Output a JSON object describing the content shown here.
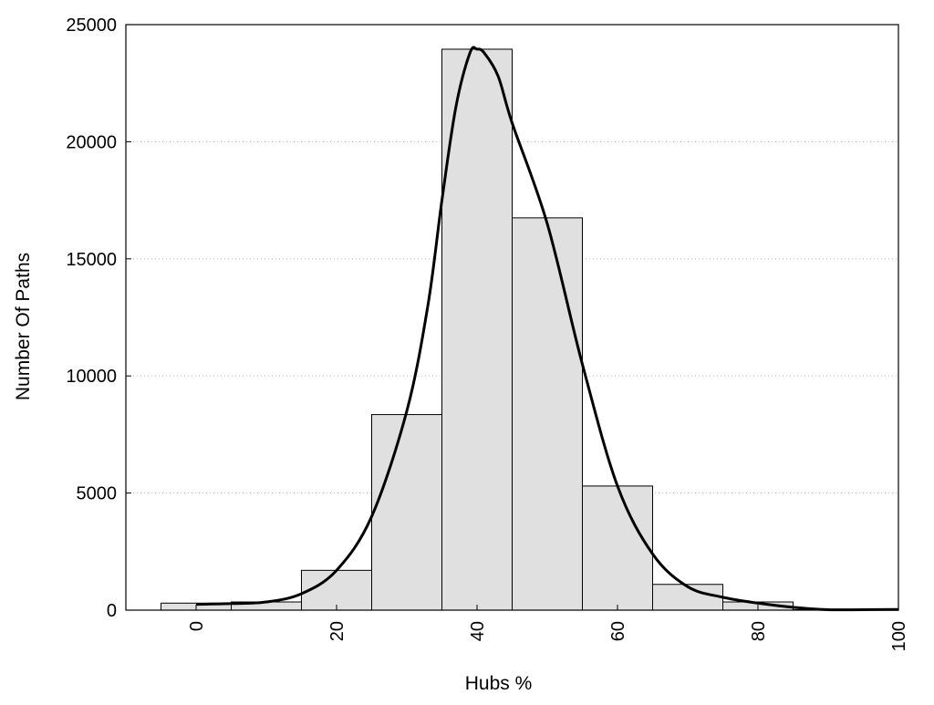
{
  "chart_data": {
    "type": "bar",
    "title": "",
    "xlabel": "Hubs %",
    "ylabel": "Number Of Paths",
    "xlim": [
      -10,
      100
    ],
    "ylim": [
      0,
      25000
    ],
    "grid": true,
    "legend": "none",
    "colors": {
      "bar_fill": "#e0e0e0",
      "bar_stroke": "#000000",
      "curve": "#000000",
      "grid": "#bbbbbb"
    },
    "x_ticks": [
      0,
      20,
      40,
      60,
      80,
      100
    ],
    "y_ticks": [
      0,
      5000,
      10000,
      15000,
      20000,
      25000
    ],
    "x_tick_labels": [
      "0",
      "20",
      "40",
      "60",
      "80",
      "100"
    ],
    "y_tick_labels": [
      "0",
      "5000",
      "10000",
      "15000",
      "20000",
      "25000"
    ],
    "bin_width": 10,
    "bins": [
      {
        "center": 0,
        "value": 300
      },
      {
        "center": 10,
        "value": 350
      },
      {
        "center": 20,
        "value": 1700
      },
      {
        "center": 30,
        "value": 8350
      },
      {
        "center": 40,
        "value": 23950
      },
      {
        "center": 50,
        "value": 16750
      },
      {
        "center": 60,
        "value": 5300
      },
      {
        "center": 70,
        "value": 1100
      },
      {
        "center": 80,
        "value": 350
      },
      {
        "center": 90,
        "value": 20
      }
    ],
    "curve": [
      [
        0,
        250
      ],
      [
        5,
        280
      ],
      [
        10,
        350
      ],
      [
        15,
        700
      ],
      [
        20,
        1700
      ],
      [
        25,
        4000
      ],
      [
        30,
        8500
      ],
      [
        33,
        13000
      ],
      [
        35,
        17500
      ],
      [
        37,
        21500
      ],
      [
        39,
        23800
      ],
      [
        40,
        23950
      ],
      [
        41,
        23800
      ],
      [
        43,
        22800
      ],
      [
        45,
        20800
      ],
      [
        50,
        16500
      ],
      [
        55,
        10500
      ],
      [
        60,
        5300
      ],
      [
        65,
        2400
      ],
      [
        70,
        1000
      ],
      [
        75,
        550
      ],
      [
        80,
        300
      ],
      [
        85,
        120
      ],
      [
        90,
        20
      ],
      [
        95,
        20
      ],
      [
        100,
        30
      ]
    ]
  }
}
